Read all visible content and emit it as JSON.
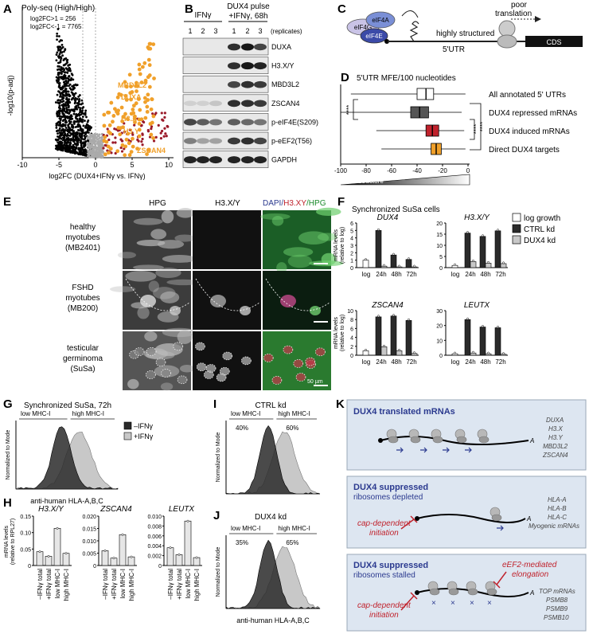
{
  "panels": {
    "A": {
      "label": "A",
      "title": "Poly-seq (High/High)",
      "stat1": "log2FC>1 = 256",
      "stat2": "log2FC<-1 = 7765",
      "ylabel": "-log10(p-adj)",
      "xlabel": "log2FC (DUX4+IFNγ vs. IFNγ)",
      "xticks": [
        "-10",
        "-5",
        "0",
        "5",
        "10"
      ],
      "genes": [
        "MBD3L2",
        "DUXA",
        "H3.X",
        "H3.Y",
        "ZSCAN4"
      ]
    },
    "B": {
      "label": "B",
      "group1": "IFNγ",
      "group2": "DUX4 pulse",
      "group2b": "+IFNγ, 68h",
      "replicates": [
        "1",
        "2",
        "3",
        "1",
        "2",
        "3"
      ],
      "replicates_label": "(replicates)",
      "blots": [
        "DUXA",
        "H3.X/Y",
        "MBD3L2",
        "ZSCAN4",
        "p-eIF4E(S209)",
        "p-eEF2(T56)",
        "GAPDH"
      ]
    },
    "C": {
      "label": "C",
      "factors": [
        "eIF4G",
        "eIF4A",
        "eIF4E"
      ],
      "note1": "poor",
      "note2": "translation",
      "structure": "highly structured",
      "utr": "5'UTR",
      "cds": "CDS"
    },
    "D": {
      "label": "D",
      "title": "5'UTR MFE/100 nucleotides",
      "categories": [
        "All annotated 5' UTRs",
        "DUX4 repressed mRNAs",
        "DUX4 induced mRNAs",
        "Direct DUX4 targets"
      ],
      "xticks": [
        "-100",
        "-80",
        "-60",
        "-40",
        "-20",
        "0"
      ],
      "xlabel": "RNA structure",
      "sig": "****"
    },
    "E": {
      "label": "E",
      "cols": [
        "HPG",
        "H3.X/Y",
        "DAPI/",
        "H3.XY",
        "/HPG"
      ],
      "rows": [
        [
          "healthy",
          "myotubes",
          "(MB2401)"
        ],
        [
          "FSHD",
          "myotubes",
          "(MB200)"
        ],
        [
          "testicular",
          "germinoma",
          "(SuSa)"
        ]
      ],
      "scale": "50 µm"
    },
    "F": {
      "label": "F",
      "title": "Synchronized SuSa cells",
      "ylabel1": "mRNA levels",
      "ylabel2": "(relative to log)",
      "legend": [
        "log growth",
        "CTRL kd",
        "DUX4 kd"
      ],
      "timepoints": [
        "log",
        "24h",
        "48h",
        "72h"
      ]
    },
    "G": {
      "label": "G",
      "title": "Synchronized SuSa, 72h",
      "gates": [
        "low MHC-I",
        "high MHC-I"
      ],
      "legend": [
        "–IFNγ",
        "+IFNγ"
      ],
      "ylabel": "Normalized to Mode",
      "xlabel": "anti-human HLA-A,B,C"
    },
    "H": {
      "label": "H",
      "ylabel1": "mRNA levels",
      "ylabel2": "(relative to RPL27)",
      "xcats": [
        "–IFNγ total",
        "+IFNγ total",
        "low MHC-I",
        "high MHC-I"
      ]
    },
    "I": {
      "label": "I",
      "title": "CTRL kd",
      "gates": [
        "low MHC-I",
        "high MHC-I"
      ],
      "pcts": [
        "40%",
        "60%"
      ],
      "ylabel": "Normalized to Mode"
    },
    "J": {
      "label": "J",
      "title": "DUX4 kd",
      "gates": [
        "low MHC-I",
        "high MHC-I"
      ],
      "pcts": [
        "35%",
        "65%"
      ],
      "ylabel": "Normalized to Mode",
      "xlabel": "anti-human HLA-A,B,C"
    },
    "K": {
      "label": "K",
      "box1": {
        "title": "DUX4 translated mRNAs",
        "genes": [
          "DUXA",
          "H3.X",
          "H3.Y",
          "MBD3L2",
          "ZSCAN4"
        ]
      },
      "box2": {
        "title": "DUX4 suppressed",
        "sub": "ribosomes depleted",
        "note": [
          "cap-dependent",
          "initiation"
        ],
        "genes": [
          "HLA-A",
          "HLA-B",
          "HLA-C",
          "Myogenic mRNAs"
        ]
      },
      "box3": {
        "title": "DUX4 suppressed",
        "sub": "ribosomes stalled",
        "note": [
          "cap-dependent",
          "initiation"
        ],
        "note2": [
          "eEF2-mediated",
          "elongation"
        ],
        "genes": [
          "TOP mRNAs",
          "PSMB8",
          "PSMB9",
          "PSMB10"
        ]
      }
    }
  },
  "chart_data": [
    {
      "panel": "F",
      "type": "bar",
      "gene": "DUX4",
      "categories": [
        "log",
        "24h",
        "48h",
        "72h"
      ],
      "series": [
        {
          "name": "log growth",
          "values": [
            1,
            null,
            null,
            null
          ]
        },
        {
          "name": "CTRL kd",
          "values": [
            null,
            5.0,
            1.7,
            1.1
          ]
        },
        {
          "name": "DUX4 kd",
          "values": [
            null,
            0.2,
            0.1,
            0.1
          ]
        }
      ],
      "ylim": [
        0,
        6
      ],
      "yticks": [
        "0",
        "1",
        "2",
        "3",
        "4",
        "5",
        "6"
      ]
    },
    {
      "panel": "F",
      "type": "bar",
      "gene": "H3.X/Y",
      "categories": [
        "log",
        "24h",
        "48h",
        "72h"
      ],
      "series": [
        {
          "name": "log growth",
          "values": [
            1,
            null,
            null,
            null
          ]
        },
        {
          "name": "CTRL kd",
          "values": [
            null,
            15.5,
            14,
            16.5
          ]
        },
        {
          "name": "DUX4 kd",
          "values": [
            null,
            2.7,
            2.0,
            1.8
          ]
        }
      ],
      "ylim": [
        0,
        20
      ],
      "yticks": [
        "0",
        "5",
        "10",
        "15",
        "20"
      ]
    },
    {
      "panel": "F",
      "type": "bar",
      "gene": "ZSCAN4",
      "categories": [
        "log",
        "24h",
        "48h",
        "72h"
      ],
      "series": [
        {
          "name": "log growth",
          "values": [
            1,
            null,
            null,
            null
          ]
        },
        {
          "name": "CTRL kd",
          "values": [
            null,
            8.6,
            8.8,
            7.8
          ]
        },
        {
          "name": "DUX4 kd",
          "values": [
            null,
            1.9,
            1.0,
            0.4
          ]
        }
      ],
      "ylim": [
        0,
        10
      ],
      "yticks": [
        "0",
        "2",
        "4",
        "6",
        "8",
        "10"
      ]
    },
    {
      "panel": "F",
      "type": "bar",
      "gene": "LEUTX",
      "categories": [
        "log",
        "24h",
        "48h",
        "72h"
      ],
      "series": [
        {
          "name": "log growth",
          "values": [
            1,
            null,
            null,
            null
          ]
        },
        {
          "name": "CTRL kd",
          "values": [
            null,
            24,
            19,
            18.5
          ]
        },
        {
          "name": "DUX4 kd",
          "values": [
            null,
            1.5,
            1.0,
            0.7
          ]
        }
      ],
      "ylim": [
        0,
        30
      ],
      "yticks": [
        "0",
        "10",
        "20",
        "30"
      ]
    },
    {
      "panel": "H",
      "type": "bar",
      "gene": "H3.X/Y",
      "categories": [
        "–IFNγ total",
        "+IFNγ total",
        "low MHC-I",
        "high MHC-I"
      ],
      "values": [
        0.042,
        0.028,
        0.113,
        0.037
      ],
      "ylim": [
        0,
        0.15
      ],
      "yticks": [
        "0",
        "0.05",
        "0.10",
        "0.15"
      ]
    },
    {
      "panel": "H",
      "type": "bar",
      "gene": "ZSCAN4",
      "categories": [
        "–IFNγ total",
        "+IFNγ total",
        "low MHC-I",
        "high MHC-I"
      ],
      "values": [
        0.006,
        0.003,
        0.0125,
        0.0035
      ],
      "ylim": [
        0,
        0.02
      ],
      "yticks": [
        "0",
        "0.005",
        "0.010",
        "0.015",
        "0.020"
      ]
    },
    {
      "panel": "H",
      "type": "bar",
      "gene": "LEUTX",
      "categories": [
        "–IFNγ total",
        "+IFNγ total",
        "low MHC-I",
        "high MHC-I"
      ],
      "values": [
        0.0036,
        0.0022,
        0.009,
        0.0016
      ],
      "ylim": [
        0,
        0.01
      ],
      "yticks": [
        "0",
        "0.002",
        "0.004",
        "0.006",
        "0.008",
        "0.010"
      ]
    },
    {
      "panel": "D",
      "type": "box",
      "categories": [
        "All annotated 5' UTRs",
        "DUX4 repressed mRNAs",
        "DUX4 induced mRNAs",
        "Direct DUX4 targets"
      ],
      "median": [
        -33,
        -38,
        -28,
        -25
      ],
      "q1": [
        -40,
        -45,
        -33,
        -29
      ],
      "q3": [
        -27,
        -31,
        -23,
        -21
      ],
      "whisker_low": [
        -92,
        -100,
        -72,
        -68
      ],
      "whisker_high": [
        -2,
        -5,
        -3,
        -2
      ],
      "colors": [
        "#ffffff",
        "#555555",
        "#c0222c",
        "#f0a02a"
      ],
      "xlim": [
        -100,
        0
      ]
    }
  ],
  "colors": {
    "orange": "#f0a02a",
    "darkred": "#9a1a2a",
    "navy": "#2b3a8f",
    "panelbg": "#dde6f1",
    "red": "#c0222c"
  }
}
